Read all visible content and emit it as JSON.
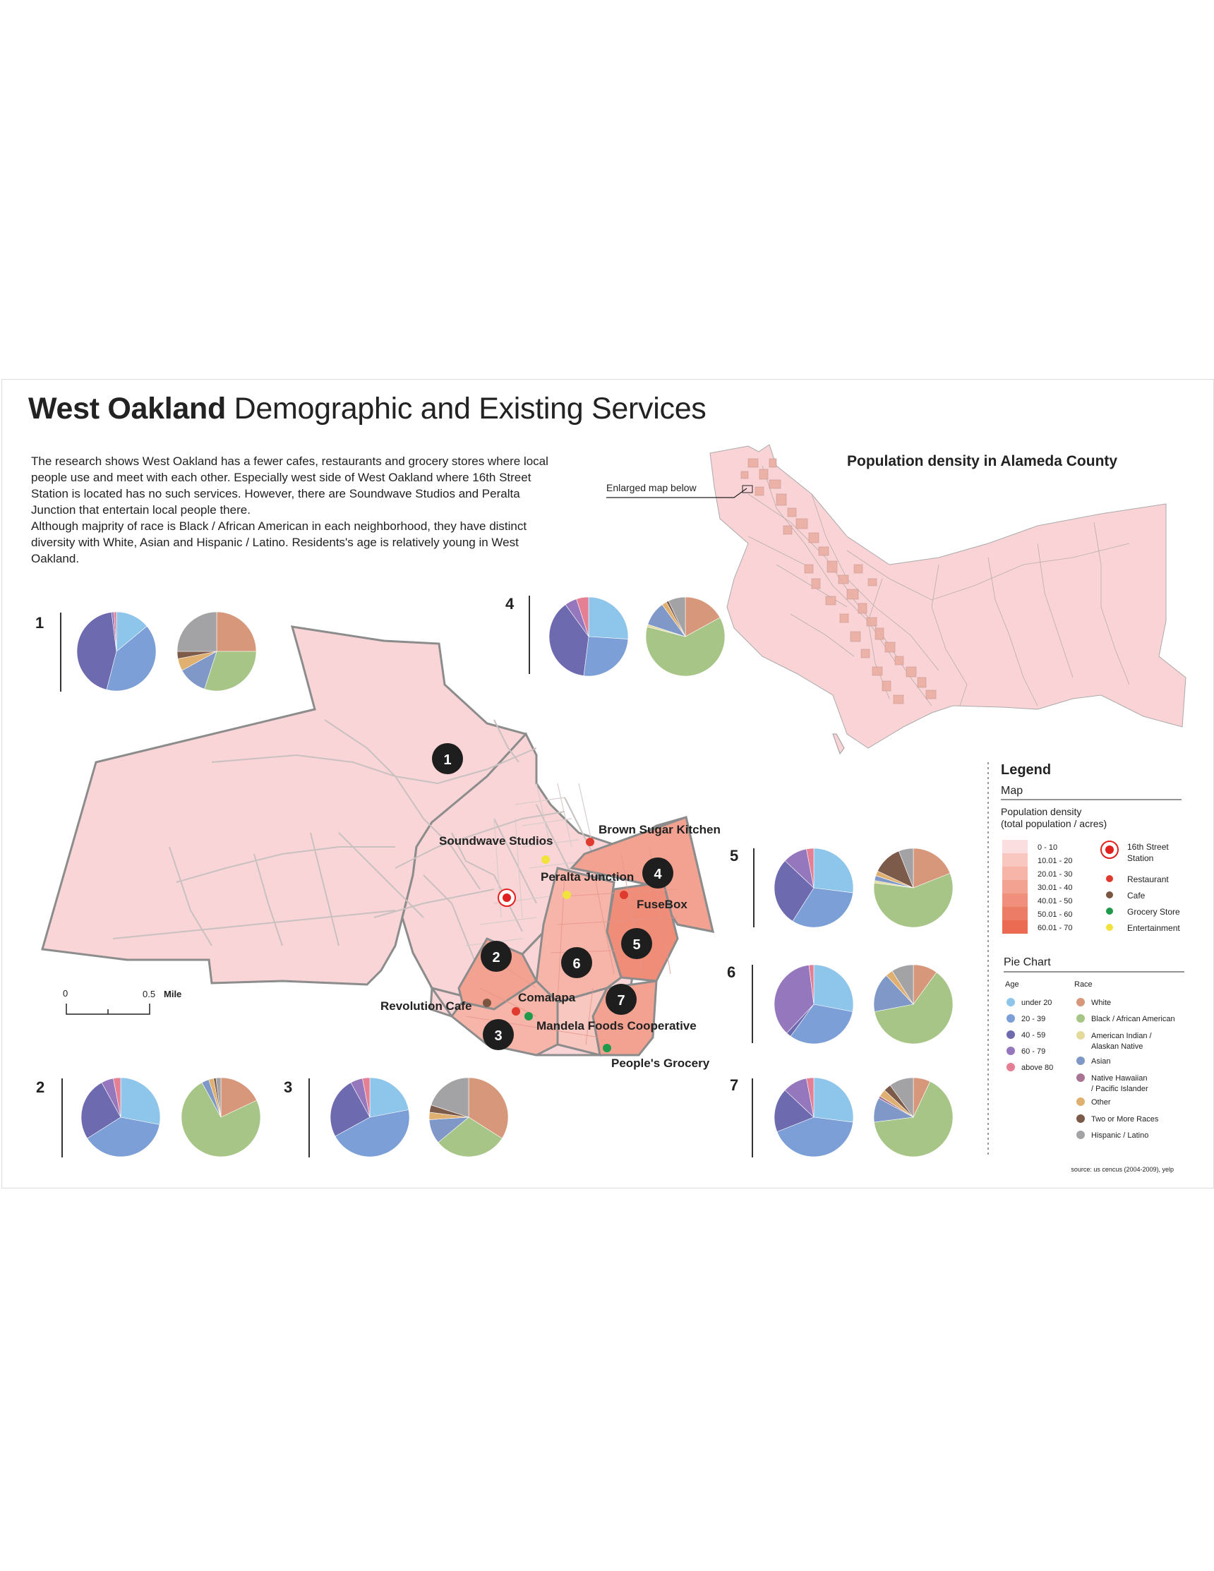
{
  "title": {
    "bold": "West Oakland",
    "regular": "Demographic and Existing Services"
  },
  "intro": {
    "p1": "The research shows West Oakland has a fewer cafes, restaurants and grocery stores where local people use and meet with each other. Especially west side of West Oakland where 16th Street Station is located has no such services. However, there are Soundwave Studios and Peralta Junction that entertain local people there.",
    "p2": "Although majprity of race is Black / African American in each neighborhood, they have distinct diversity with White, Asian and Hispanic / Latino. Residents's age is relatively young in West Oakland."
  },
  "inset": {
    "title": "Population density in Alameda County",
    "callout": "Enlarged map below"
  },
  "map": {
    "scale": {
      "zero": "0",
      "half": "0.5",
      "unit": "Mile"
    },
    "neighborhoods": [
      "1",
      "2",
      "3",
      "4",
      "5",
      "6",
      "7"
    ],
    "places": {
      "soundwave": "Soundwave Studios",
      "brown_sugar": "Brown Sugar Kitchen",
      "peralta": "Peralta Junction",
      "fusebox": "FuseBox",
      "revolution": "Revolution Cafe",
      "comalapa": "Comalapa",
      "mandela": "Mandela Foods Cooperative",
      "peoples": "People's Grocery"
    }
  },
  "legend": {
    "title": "Legend",
    "map_header": "Map",
    "density_label_1": "Population density",
    "density_label_2": "(total population / acres)",
    "density_classes": [
      "0 - 10",
      "10.01 - 20",
      "20.01 - 30",
      "30.01 - 40",
      "40.01 - 50",
      "50.01 - 60",
      "60.01 - 70"
    ],
    "density_colors": [
      "#fbdedf",
      "#f8c8c0",
      "#f6b5a8",
      "#f3a291",
      "#f08f7b",
      "#ed7c66",
      "#ea6a52"
    ],
    "station_1": "16th Street",
    "station_2": "Station",
    "restaurant": "Restaurant",
    "cafe": "Cafe",
    "grocery": "Grocery Store",
    "entertainment": "Entertainment",
    "pie_header": "Pie Chart",
    "age_header": "Age",
    "race_header": "Race",
    "age_items": [
      "under 20",
      "20 - 39",
      "40 - 59",
      "60 - 79",
      "above 80"
    ],
    "race_items": [
      "White",
      "Black / African American",
      "American Indian /",
      "Alaskan Native",
      "Asian",
      "Native Hawaiian",
      "/ Pacific Islander",
      "Other",
      "Two or More Races",
      "Hispanic /  Latino"
    ]
  },
  "source": "source: us cencus (2004-2009), yelp",
  "colors": {
    "age": [
      "#8ec5ea",
      "#7b9fd6",
      "#6e6ab0",
      "#9577bd",
      "#e57f93"
    ],
    "race": [
      "#d7977b",
      "#a7c586",
      "#e3da9b",
      "#7f98c8",
      "#a97494",
      "#e0b070",
      "#7d5b4a",
      "#a3a3a6"
    ],
    "restaurant": "#e03a2f",
    "cafe": "#7a5640",
    "grocery": "#1f9a4a",
    "entertainment": "#f1e33b",
    "station": "#e1211f"
  },
  "chart_data": [
    {
      "type": "pie",
      "neighborhood": "1",
      "age": [
        0.14,
        0.4,
        0.44,
        0.01,
        0.01
      ],
      "race": [
        0.25,
        0.3,
        0.0,
        0.12,
        0.0,
        0.05,
        0.03,
        0.25
      ]
    },
    {
      "type": "pie",
      "neighborhood": "1",
      "metric": "age",
      "slices": [
        0.14,
        0.4,
        0.44,
        0.01,
        0.01
      ]
    },
    {
      "type": "pie",
      "neighborhood": "2",
      "age": [
        0.28,
        0.38,
        0.26,
        0.05,
        0.03
      ],
      "race": [
        0.18,
        0.74,
        0.0,
        0.03,
        0.0,
        0.02,
        0.01,
        0.02
      ]
    },
    {
      "type": "pie",
      "neighborhood": "3",
      "age": [
        0.22,
        0.45,
        0.25,
        0.05,
        0.03
      ],
      "race": [
        0.34,
        0.3,
        0.0,
        0.1,
        0.0,
        0.03,
        0.03,
        0.2
      ]
    },
    {
      "type": "pie",
      "neighborhood": "4",
      "age": [
        0.26,
        0.26,
        0.38,
        0.05,
        0.05
      ],
      "race": [
        0.17,
        0.62,
        0.01,
        0.1,
        0.0,
        0.02,
        0.01,
        0.07
      ]
    },
    {
      "type": "pie",
      "neighborhood": "5",
      "age": [
        0.27,
        0.32,
        0.28,
        0.1,
        0.03
      ],
      "race": [
        0.19,
        0.58,
        0.01,
        0.02,
        0.0,
        0.02,
        0.12,
        0.06
      ]
    },
    {
      "type": "pie",
      "neighborhood": "6",
      "age": [
        0.28,
        0.32,
        0.02,
        0.36,
        0.02
      ],
      "race": [
        0.1,
        0.62,
        0.0,
        0.16,
        0.0,
        0.03,
        0.0,
        0.09
      ]
    },
    {
      "type": "pie",
      "neighborhood": "7",
      "age": [
        0.27,
        0.42,
        0.18,
        0.1,
        0.03
      ],
      "race": [
        0.07,
        0.66,
        0.0,
        0.1,
        0.01,
        0.03,
        0.03,
        0.1
      ]
    }
  ]
}
